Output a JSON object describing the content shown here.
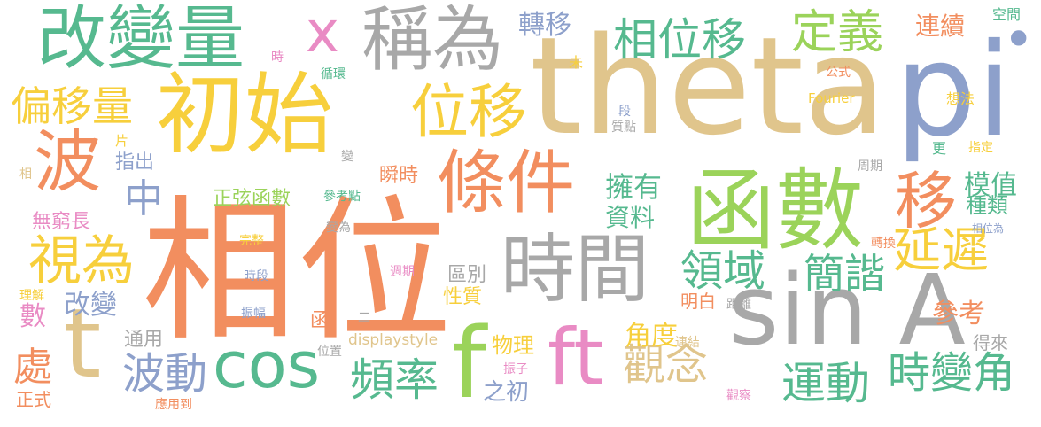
{
  "words": {
    "w_xiangwei": "相位",
    "w_theta": "theta",
    "w_pi": "pi",
    "w_chushi": "初始",
    "w_hanshu": "函數",
    "w_sinA": "sin A",
    "w_gaibianliang": "改變量",
    "w_chengwei": "稱為",
    "w_tiaojian": "條件",
    "w_shijian": "時間",
    "w_bo": "波",
    "w_t": "t",
    "w_cos": "cos",
    "w_f": "f",
    "w_ft": "ft",
    "w_weiyi": "位移",
    "w_xiangweiyi": "相位移",
    "w_dingyi": "定義",
    "w_yi": "移",
    "w_pianyiliang": "偏移量",
    "w_shiwei": "視為",
    "w_yanchi": "延遲",
    "w_yundong": "運動",
    "w_shibianjiao": "時變角",
    "w_guannian": "觀念",
    "w_pinlv": "頻率",
    "w_bodong": "波動",
    "w_lingyu": "領域",
    "w_jianxie": "簡諧",
    "w_x": "x",
    "w_dot": "•",
    "w_zhuanyi": "轉移",
    "w_lianxu": "連續",
    "w_kongjian": "空間",
    "w_zhong": "中",
    "w_chu": "處",
    "w_shu": "數",
    "w_gaibian": "改變",
    "w_zhengxian": "正弦函數",
    "w_yongyou": "擁有",
    "w_ziliao": "資料",
    "w_mozhi": "模值",
    "w_zhonglei": "種類",
    "w_jiaodu": "角度",
    "w_cankao": "參考",
    "w_han": "函",
    "w_wuli": "物理",
    "w_zhichu2": "之初",
    "w_shunshi": "瞬時",
    "w_zhichu": "指出",
    "w_wuqiongchang": "無窮長",
    "w_qubie": "區別",
    "w_xingzhi": "性質",
    "w_mingbai": "明白",
    "w_tongyong": "通用",
    "w_zhengshi": "正式",
    "w_displaystyle": "displaystyle",
    "w_weizhi": "位置",
    "w_zhenzi": "振子",
    "w_guancha": "觀察",
    "w_yingyongdao": "應用到",
    "w_lianjie": "連結",
    "w_juli": "距離",
    "w_delai": "得來",
    "w_zhuanhuan": "轉換",
    "w_xiangweiwei": "相位為",
    "w_zhouqi": "周期",
    "w_zhiding": "指定",
    "w_geng": "更",
    "w_xiangfa": "想法",
    "w_fourier": "Fourier",
    "w_gongshi": "公式",
    "w_duan": "段",
    "w_zhidian": "質點",
    "w_wei": "未",
    "w_shi": "時",
    "w_xunhuan": "循環",
    "w_pian": "片",
    "w_xiang": "相",
    "w_bian": "變",
    "w_cankaodian": "參考點",
    "w_bianwei": "變為",
    "w_wanzheng": "完整",
    "w_shiduan": "時段",
    "w_zhenfu": "振幅",
    "w_zhouqi2": "週期",
    "w_lijie": "理解",
    "w_er": "二"
  }
}
